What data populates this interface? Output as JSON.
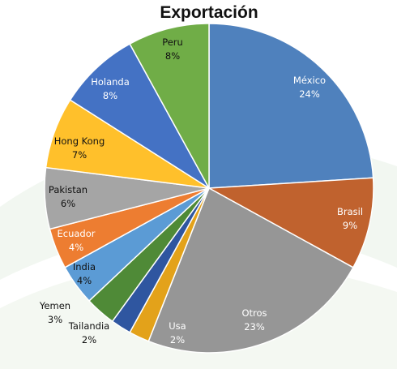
{
  "chart_data": {
    "type": "pie",
    "title": "Exportación",
    "slices": [
      {
        "name": "México",
        "value": 24,
        "label": "24%",
        "color": "#4f81bd"
      },
      {
        "name": "Brasil",
        "value": 9,
        "label": "9%",
        "color": "#c0622e"
      },
      {
        "name": "Otros",
        "value": 23,
        "label": "23%",
        "color": "#969696"
      },
      {
        "name": "Usa",
        "value": 2,
        "label": "2%",
        "color": "#e3a21a"
      },
      {
        "name": "Tailandia",
        "value": 2,
        "label": "2%",
        "color": "#2f56a0"
      },
      {
        "name": "Yemen",
        "value": 3,
        "label": "3%",
        "color": "#4f8a37"
      },
      {
        "name": "India",
        "value": 4,
        "label": "4%",
        "color": "#5b9bd5"
      },
      {
        "name": "Ecuador",
        "value": 4,
        "label": "4%",
        "color": "#ed7d31"
      },
      {
        "name": "Pakistan",
        "value": 6,
        "label": "6%",
        "color": "#a5a5a5"
      },
      {
        "name": "Hong Kong",
        "value": 7,
        "label": "7%",
        "color": "#ffc02b"
      },
      {
        "name": "Holanda",
        "value": 8,
        "label": "8%",
        "color": "#4472c4"
      },
      {
        "name": "Peru",
        "value": 8,
        "label": "8%",
        "color": "#70ad47"
      }
    ],
    "legend": "none",
    "label_style": "category name and percentage on slice"
  }
}
